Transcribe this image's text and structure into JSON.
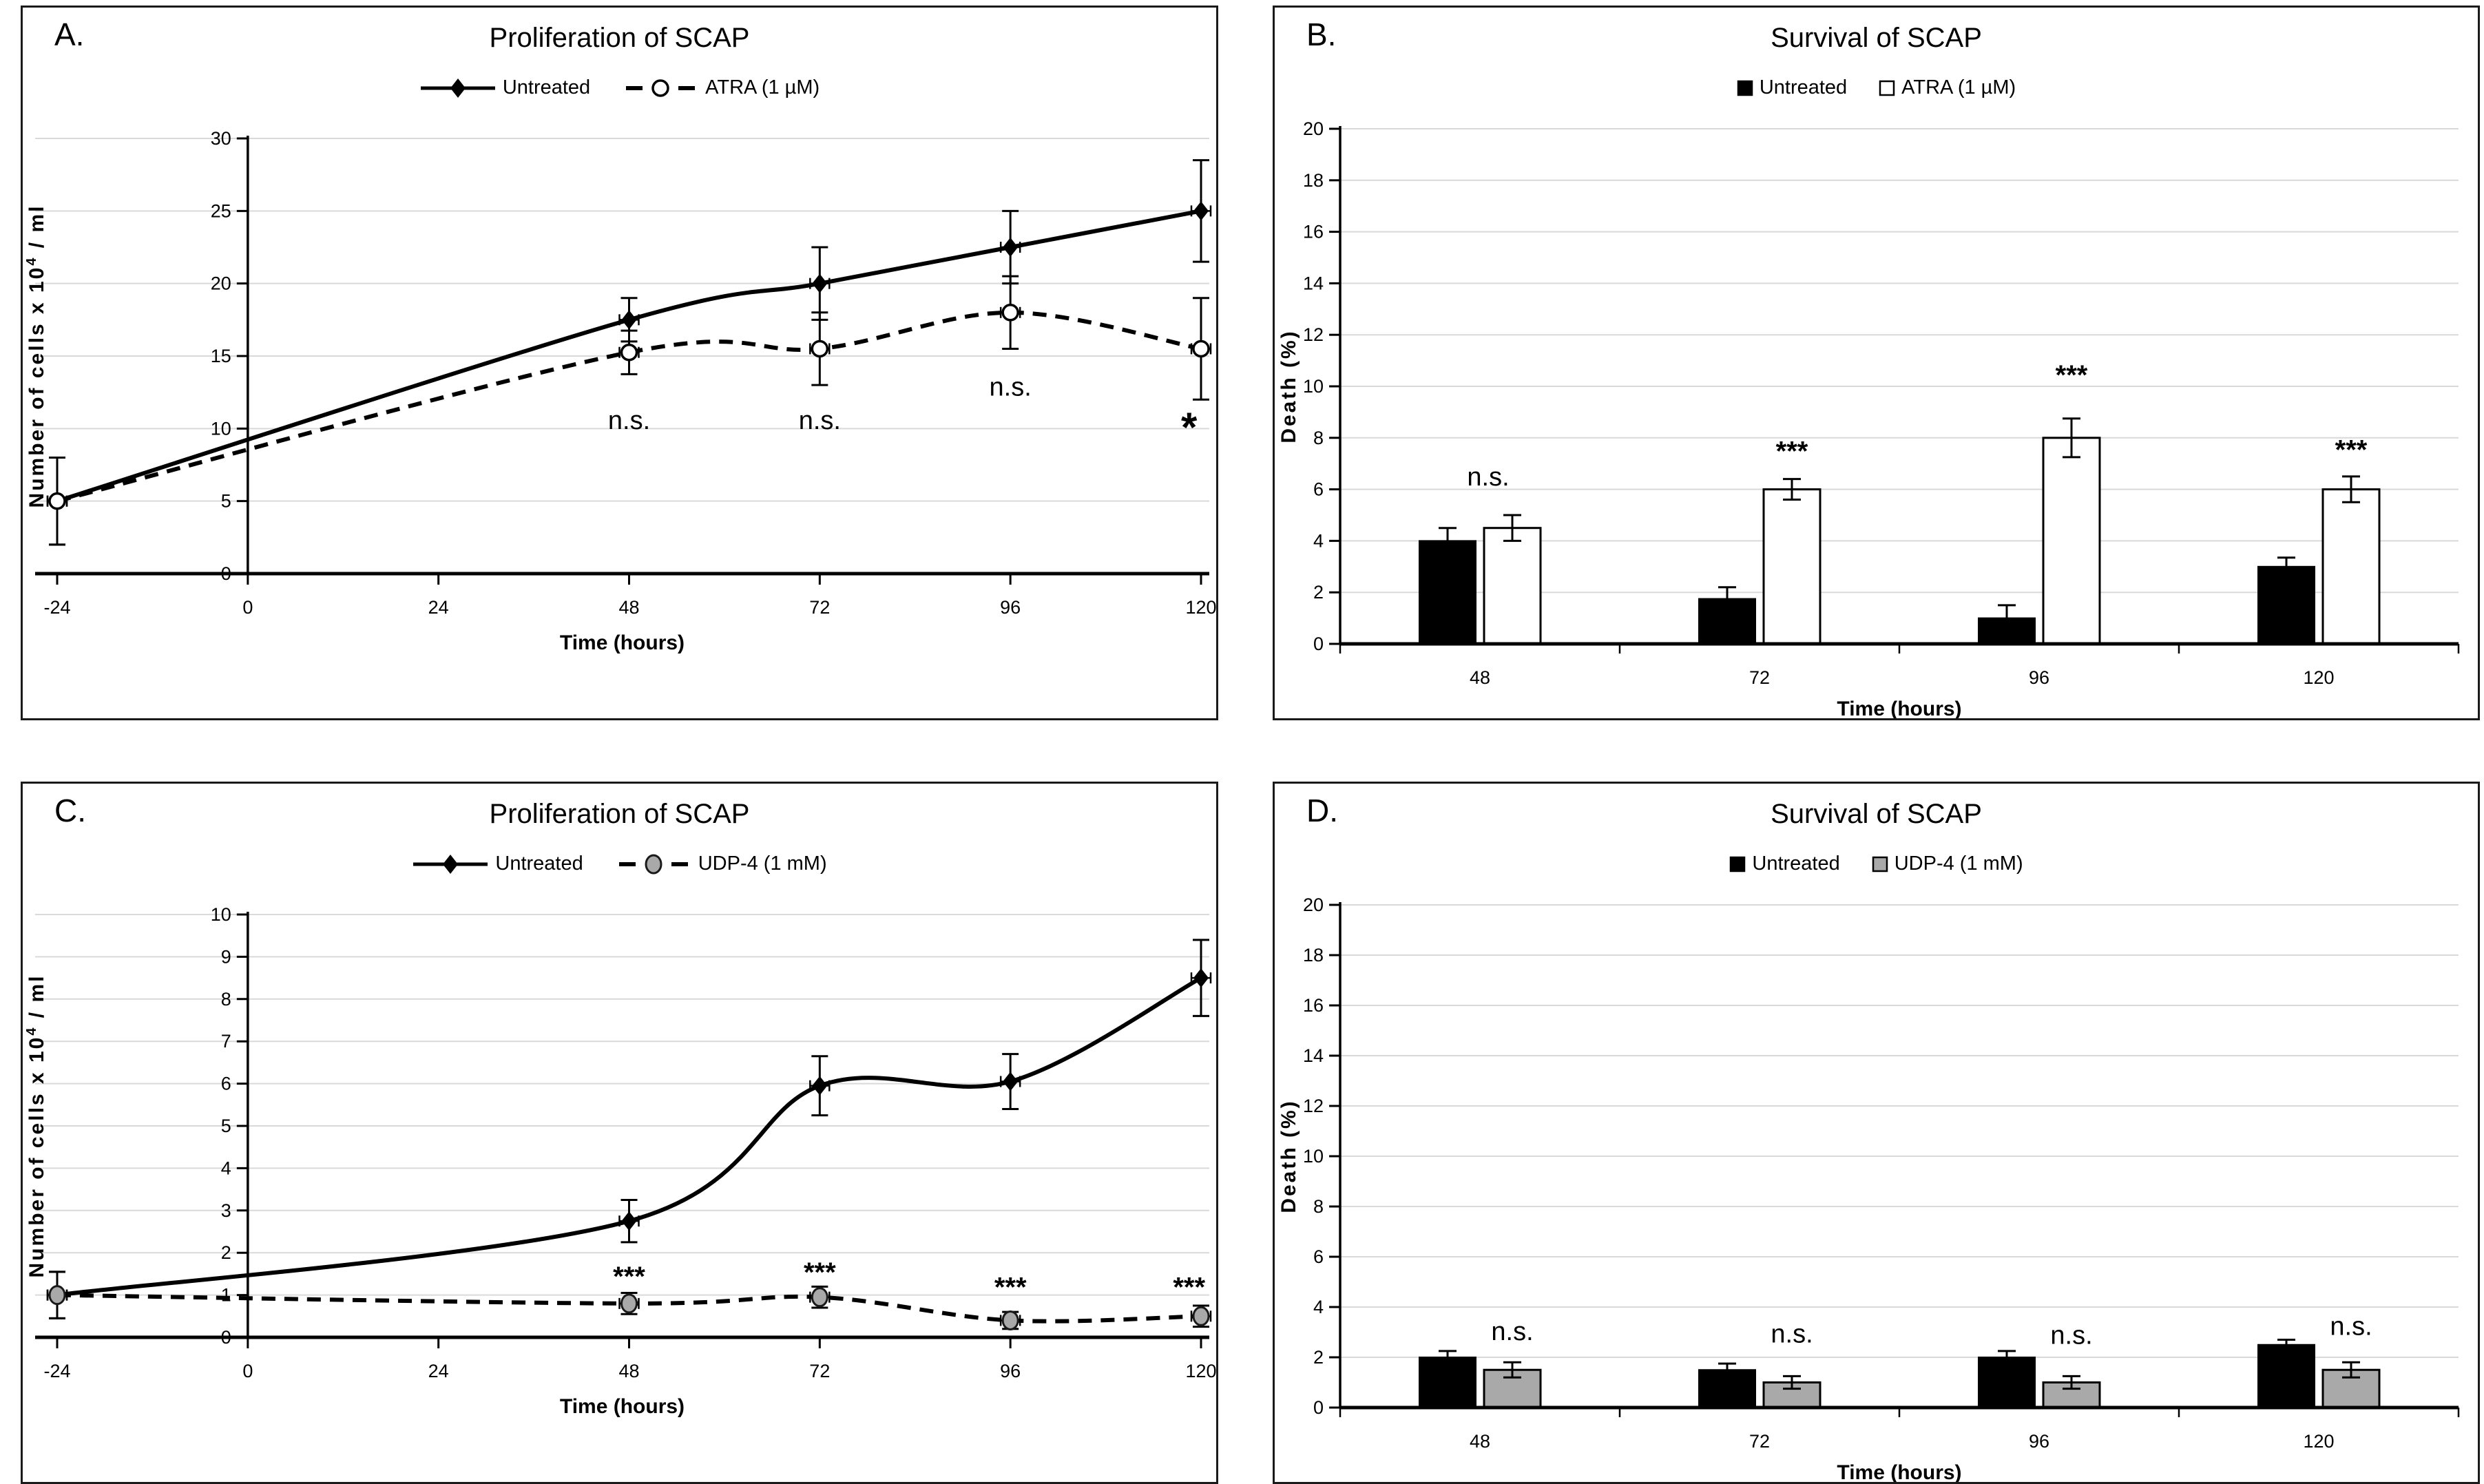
{
  "colors": {
    "black": "#000000",
    "white": "#ffffff",
    "gray_bar": "#a9a9a9",
    "gridline": "#d9d9d9",
    "axis": "#000000",
    "panel_border": "#1a1a1a"
  },
  "chart_data": [
    {
      "panel_label": "A.",
      "title": "Proliferation of SCAP",
      "type": "line",
      "xlabel": "Time (hours)",
      "ylabel": {
        "main": "Number of cells x 10",
        "sup": "4",
        "tail": " / ml"
      },
      "xlim": [
        -24,
        120
      ],
      "x_ticks": [
        -24,
        0,
        24,
        48,
        72,
        96,
        120
      ],
      "ylim": [
        0,
        30
      ],
      "y_step": 5,
      "grid": true,
      "legend_position": "top-center",
      "series": [
        {
          "name": "Untreated",
          "marker": "diamond-filled",
          "line": "solid",
          "x": [
            -24,
            48,
            72,
            96,
            120
          ],
          "y": [
            5,
            17.5,
            20,
            22.5,
            25
          ],
          "yerr": [
            3,
            1.5,
            2.5,
            2.5,
            3.5
          ]
        },
        {
          "name": "ATRA (1 µM)",
          "marker": "circle-open",
          "line": "dashed",
          "x": [
            -24,
            48,
            72,
            96,
            120
          ],
          "y": [
            5,
            15.25,
            15.5,
            18,
            15.5
          ],
          "yerr": [
            3,
            1.5,
            2.5,
            2.5,
            3.5
          ]
        }
      ],
      "annotations": [
        {
          "text": "n.s.",
          "x": 48,
          "y": 10.6
        },
        {
          "text": "n.s.",
          "x": 72,
          "y": 10.6
        },
        {
          "text": "n.s.",
          "x": 96,
          "y": 12.9
        },
        {
          "text": "*",
          "x": 118.5,
          "y": 10.1
        }
      ]
    },
    {
      "panel_label": "B.",
      "title": "Survival of SCAP",
      "type": "bar",
      "xlabel": "Time (hours)",
      "ylabel": {
        "main": "Death (%)"
      },
      "categories": [
        "48",
        "72",
        "96",
        "120"
      ],
      "ylim": [
        0,
        20
      ],
      "y_step": 2,
      "grid": true,
      "legend_position": "top-center",
      "series": [
        {
          "name": "Untreated",
          "fill": "black",
          "values": [
            4,
            1.75,
            1,
            3
          ],
          "yerr": [
            0.5,
            0.45,
            0.5,
            0.35
          ]
        },
        {
          "name": "ATRA (1 µM)",
          "fill": "white",
          "values": [
            4.5,
            6,
            8,
            6
          ],
          "yerr": [
            0.5,
            0.4,
            0.75,
            0.5
          ]
        }
      ],
      "annotations": [
        {
          "text": "n.s.",
          "cat": 0,
          "y": 6.5,
          "align": "center"
        },
        {
          "text": "***",
          "cat": 1,
          "y": 7.5
        },
        {
          "text": "***",
          "cat": 2,
          "y": 10.45
        },
        {
          "text": "***",
          "cat": 3,
          "y": 7.55
        }
      ]
    },
    {
      "panel_label": "C.",
      "title": "Proliferation of SCAP",
      "type": "line",
      "xlabel": "Time (hours)",
      "ylabel": {
        "main": "Number of cells x 10",
        "sup": "4",
        "tail": " / ml"
      },
      "xlim": [
        -24,
        120
      ],
      "x_ticks": [
        -24,
        0,
        24,
        48,
        72,
        96,
        120
      ],
      "ylim": [
        0,
        10
      ],
      "y_step": 1,
      "grid": true,
      "legend_position": "top-center",
      "series": [
        {
          "name": "Untreated",
          "marker": "diamond-filled",
          "line": "solid",
          "x": [
            -24,
            48,
            72,
            96,
            120
          ],
          "y": [
            1,
            2.75,
            5.95,
            6.05,
            8.5
          ],
          "yerr": [
            0.55,
            0.5,
            0.7,
            0.65,
            0.9
          ]
        },
        {
          "name": "UDP-4 (1 mM)",
          "marker": "circle-gray",
          "line": "dashed",
          "x": [
            -24,
            48,
            72,
            96,
            120
          ],
          "y": [
            1,
            0.8,
            0.95,
            0.4,
            0.5
          ],
          "yerr": [
            0.55,
            0.25,
            0.25,
            0.2,
            0.25
          ]
        }
      ],
      "annotations": [
        {
          "text": "***",
          "x": 48,
          "y": 1.45
        },
        {
          "text": "***",
          "x": 72,
          "y": 1.55
        },
        {
          "text": "***",
          "x": 96,
          "y": 1.2
        },
        {
          "text": "***",
          "x": 118.5,
          "y": 1.2
        }
      ]
    },
    {
      "panel_label": "D.",
      "title": "Survival of SCAP",
      "type": "bar",
      "xlabel": "Time (hours)",
      "ylabel": {
        "main": "Death (%)"
      },
      "categories": [
        "48",
        "72",
        "96",
        "120"
      ],
      "ylim": [
        0,
        20
      ],
      "y_step": 2,
      "grid": true,
      "legend_position": "top-center",
      "series": [
        {
          "name": "Untreated",
          "fill": "black",
          "values": [
            2,
            1.5,
            2,
            2.5
          ],
          "yerr": [
            0.25,
            0.25,
            0.25,
            0.2
          ]
        },
        {
          "name": "UDP-4 (1 mM)",
          "fill": "gray",
          "values": [
            1.5,
            1,
            1,
            1.5
          ],
          "yerr": [
            0.3,
            0.25,
            0.25,
            0.3
          ]
        }
      ],
      "annotations": [
        {
          "text": "n.s.",
          "cat": 0,
          "y": 3.05
        },
        {
          "text": "n.s.",
          "cat": 1,
          "y": 2.95
        },
        {
          "text": "n.s.",
          "cat": 2,
          "y": 2.9
        },
        {
          "text": "n.s.",
          "cat": 3,
          "y": 3.25
        }
      ]
    }
  ]
}
